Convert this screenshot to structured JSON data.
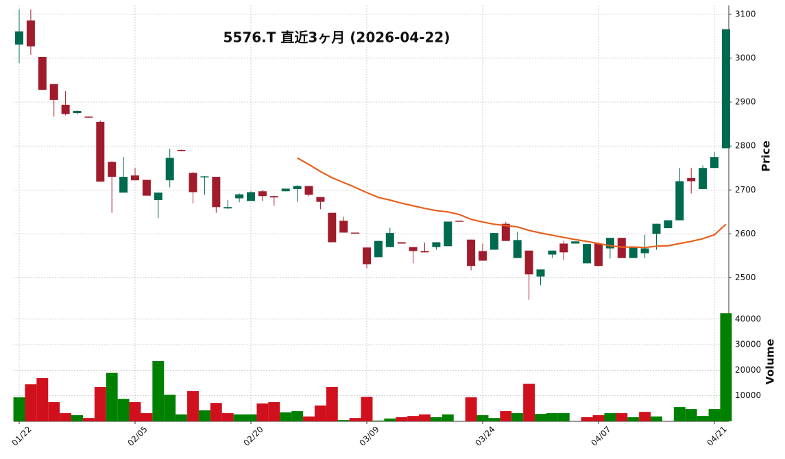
{
  "chart_data": {
    "type": "candlestick",
    "title": "5576.T  直近3ヶ月 (2026-04-22)",
    "categories": [
      "01/22",
      null,
      null,
      null,
      null,
      null,
      null,
      null,
      null,
      null,
      "02/05",
      null,
      null,
      null,
      null,
      null,
      null,
      null,
      null,
      null,
      "02/20",
      null,
      null,
      null,
      null,
      null,
      null,
      null,
      null,
      null,
      "03/09",
      null,
      null,
      null,
      null,
      null,
      null,
      null,
      null,
      null,
      "03/24",
      null,
      null,
      null,
      null,
      null,
      null,
      null,
      null,
      null,
      "04/07",
      null,
      null,
      null,
      null,
      null,
      null,
      null,
      null,
      null,
      "04/21",
      null
    ],
    "open": [
      3031,
      3086,
      3003,
      2941,
      2894,
      2875,
      2867,
      2855,
      2764,
      2694,
      2733,
      2723,
      2677,
      2722,
      2791,
      2739,
      2729,
      2730,
      2658,
      2681,
      2675,
      2697,
      2686,
      2697,
      2702,
      2709,
      2684,
      2648,
      2630,
      2603,
      2569,
      2547,
      2570,
      2581,
      2570,
      2561,
      2570,
      2572,
      2630,
      2587,
      2561,
      2564,
      2623,
      2545,
      2562,
      2503,
      2553,
      2578,
      2578,
      2533,
      2578,
      2567,
      2591,
      2545,
      2556,
      2600,
      2613,
      2631,
      2727,
      2702,
      2750,
      2795
    ],
    "high": [
      3111,
      3111,
      3003,
      2941,
      2925,
      2881,
      2867,
      2858,
      2766,
      2775,
      2750,
      2723,
      2694,
      2794,
      2792,
      2741,
      2732,
      2730,
      2677,
      2692,
      2697,
      2700,
      2687,
      2703,
      2711,
      2709,
      2684,
      2648,
      2639,
      2603,
      2569,
      2584,
      2614,
      2581,
      2570,
      2580,
      2581,
      2628,
      2630,
      2587,
      2578,
      2602,
      2627,
      2605,
      2562,
      2519,
      2562,
      2584,
      2583,
      2577,
      2580,
      2591,
      2591,
      2570,
      2598,
      2623,
      2631,
      2750,
      2750,
      2756,
      2786,
      3066
    ],
    "low": [
      2989,
      3008,
      2928,
      2867,
      2870,
      2872,
      2866,
      2719,
      2648,
      2694,
      2722,
      2687,
      2636,
      2706,
      2788,
      2669,
      2689,
      2648,
      2657,
      2672,
      2675,
      2675,
      2664,
      2697,
      2673,
      2686,
      2656,
      2581,
      2603,
      2602,
      2522,
      2547,
      2570,
      2578,
      2533,
      2558,
      2564,
      2572,
      2629,
      2517,
      2539,
      2564,
      2584,
      2545,
      2450,
      2483,
      2545,
      2540,
      2578,
      2533,
      2527,
      2544,
      2545,
      2545,
      2545,
      2564,
      2613,
      2631,
      2692,
      2702,
      2750,
      2795
    ],
    "close": [
      3061,
      3027,
      2928,
      2905,
      2873,
      2880,
      2866,
      2719,
      2730,
      2730,
      2722,
      2687,
      2694,
      2773,
      2789,
      2695,
      2731,
      2661,
      2661,
      2690,
      2695,
      2686,
      2683,
      2703,
      2709,
      2689,
      2673,
      2581,
      2603,
      2602,
      2531,
      2584,
      2602,
      2578,
      2561,
      2558,
      2581,
      2628,
      2629,
      2527,
      2539,
      2602,
      2584,
      2586,
      2508,
      2519,
      2562,
      2558,
      2583,
      2577,
      2527,
      2591,
      2545,
      2570,
      2567,
      2623,
      2631,
      2720,
      2720,
      2750,
      2775,
      3066
    ],
    "up_color": "#006a4e",
    "down_color": "#a01c2c",
    "ylabel": "Price",
    "ylim": [
      2440,
      3120
    ],
    "yticks": [
      2500,
      2600,
      2700,
      2800,
      2900,
      3000,
      3100
    ],
    "grid": true,
    "ma": {
      "color": "#e8601c",
      "values": [
        null,
        null,
        null,
        null,
        null,
        null,
        null,
        null,
        null,
        null,
        null,
        null,
        null,
        null,
        null,
        null,
        null,
        null,
        null,
        null,
        null,
        null,
        null,
        null,
        2773,
        2758,
        2742,
        2728,
        2717,
        2706,
        2694,
        2683,
        2677,
        2670,
        2664,
        2658,
        2653,
        2650,
        2644,
        2633,
        2627,
        2622,
        2619,
        2616,
        2608,
        2602,
        2597,
        2592,
        2587,
        2583,
        2578,
        2573,
        2570,
        2570,
        2569,
        2572,
        2573,
        2578,
        2583,
        2589,
        2598,
        2622
      ]
    },
    "volume": {
      "ylabel": "Volume",
      "ylim": [
        0,
        43700
      ],
      "yticks": [
        10000,
        20000,
        30000,
        40000
      ],
      "values": [
        9400,
        14500,
        16900,
        7500,
        3200,
        2400,
        1300,
        13400,
        19000,
        8800,
        7500,
        3200,
        23600,
        10400,
        2700,
        11800,
        4300,
        7200,
        3200,
        2700,
        2700,
        7000,
        7500,
        3500,
        4000,
        1900,
        6200,
        13400,
        500,
        1300,
        9600,
        300,
        1100,
        1600,
        2100,
        2700,
        1600,
        2700,
        0,
        9400,
        2400,
        1300,
        4000,
        3200,
        14700,
        2900,
        3200,
        3200,
        0,
        1600,
        2400,
        3200,
        3200,
        1600,
        3700,
        1900,
        0,
        5600,
        4800,
        2100,
        4800,
        42300
      ],
      "colors": [
        "#008000",
        "#d0101c",
        "#d0101c",
        "#d0101c",
        "#d0101c",
        "#008000",
        "#d0101c",
        "#d0101c",
        "#008000",
        "#008000",
        "#d0101c",
        "#d0101c",
        "#008000",
        "#008000",
        "#008000",
        "#d0101c",
        "#008000",
        "#d0101c",
        "#d0101c",
        "#008000",
        "#008000",
        "#d0101c",
        "#d0101c",
        "#008000",
        "#008000",
        "#d0101c",
        "#d0101c",
        "#d0101c",
        "#008000",
        "#d0101c",
        "#d0101c",
        "#008000",
        "#008000",
        "#d0101c",
        "#d0101c",
        "#d0101c",
        "#008000",
        "#008000",
        "#008000",
        "#d0101c",
        "#008000",
        "#008000",
        "#d0101c",
        "#008000",
        "#d0101c",
        "#008000",
        "#008000",
        "#008000",
        "#008000",
        "#d0101c",
        "#d0101c",
        "#008000",
        "#d0101c",
        "#008000",
        "#d0101c",
        "#008000",
        "#008000",
        "#008000",
        "#008000",
        "#008000",
        "#008000",
        "#008000"
      ]
    }
  }
}
